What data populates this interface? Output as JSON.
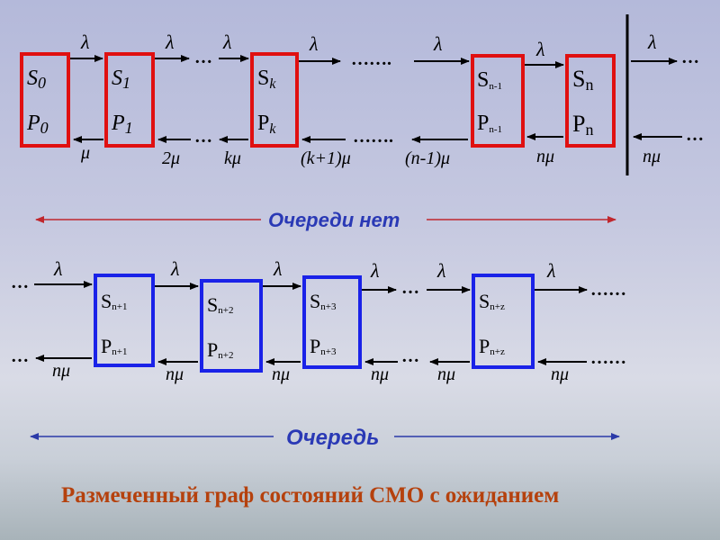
{
  "colors": {
    "red": "#e01010",
    "blue": "#1a22e8",
    "dark_red_arrow": "#c0272d",
    "dark_blue_arrow": "#2b3aa8",
    "caption_red": "#b0390c",
    "caption_blue": "#2a39b5"
  },
  "top_row": {
    "states": [
      {
        "s_main": "S",
        "s_sub": "0",
        "p_main": "P",
        "p_sub": "0"
      },
      {
        "s_main": "S",
        "s_sub": "1",
        "p_main": "P",
        "p_sub": "1"
      },
      {
        "s_main": "S",
        "s_sub": "k",
        "p_main": "P",
        "p_sub": "k"
      },
      {
        "s_main": "S",
        "s_sub": "n-1",
        "p_main": "P",
        "p_sub": "n-1"
      },
      {
        "s_main": "S",
        "s_sub": "n",
        "p_main": "P",
        "p_sub": "n"
      }
    ],
    "lambda": "λ",
    "mu_labels": [
      "μ",
      "2μ",
      "kμ",
      "(k+1)μ",
      "(n-1)μ",
      "nμ",
      "nμ"
    ],
    "ellipsis_short": "…",
    "ellipsis_long": "……."
  },
  "no_queue_caption": "Очереди нет",
  "bottom_row": {
    "states": [
      {
        "s_main": "S",
        "s_sub": "n+1",
        "p_main": "P",
        "p_sub": "n+1"
      },
      {
        "s_main": "S",
        "s_sub": "n+2",
        "p_main": "P",
        "p_sub": "n+2"
      },
      {
        "s_main": "S",
        "s_sub": "n+3",
        "p_main": "P",
        "p_sub": "n+3"
      },
      {
        "s_main": "S",
        "s_sub": "n+z",
        "p_main": "P",
        "p_sub": "n+z"
      }
    ],
    "lambda": "λ",
    "n_mu": "nμ",
    "ellipsis_short": "…",
    "ellipsis_long": "……"
  },
  "queue_caption": "Очередь",
  "footer_title": "Размеченный граф состояний СМО с ожиданием"
}
